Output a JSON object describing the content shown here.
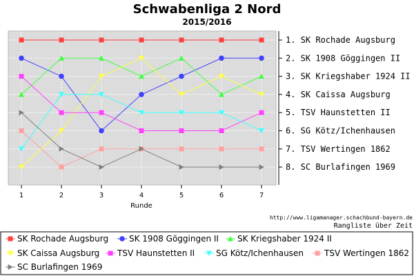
{
  "chart_data": {
    "type": "line",
    "title": "Schwabenliga 2 Nord",
    "subtitle": "2015/2016",
    "xlabel": "Runde",
    "ylabel": "",
    "x": [
      1,
      2,
      3,
      4,
      5,
      6,
      7
    ],
    "ylim": [
      0.5,
      8.5
    ],
    "y_inverted": true,
    "grid": true,
    "right_labels": [
      "1. SK Rochade Augsburg",
      "2. SK 1908 Göggingen II",
      "3. SK Kriegshaber 1924 II",
      "4. SK Caissa Augsburg",
      "5. TSV Haunstetten II",
      "6. SG Kötz/Ichenhausen",
      "7. TSV Wertingen 1862",
      "8. SC Burlafingen 1969"
    ],
    "source_url": "http://www.ligamanager.schachbund-bayern.de",
    "footer": "Rangliste über Zeit",
    "legend_position": "bottom",
    "series": [
      {
        "name": "SK Rochade Augsburg",
        "color": "#ff4040",
        "marker": "square",
        "values": [
          1,
          1,
          1,
          1,
          1,
          1,
          1
        ]
      },
      {
        "name": "SK 1908 Göggingen II",
        "color": "#4040ff",
        "marker": "circle",
        "values": [
          2,
          3,
          6,
          4,
          3,
          2,
          2
        ]
      },
      {
        "name": "SK Kriegshaber 1924 II",
        "color": "#40ff40",
        "marker": "triangle-up",
        "values": [
          4,
          2,
          2,
          3,
          2,
          4,
          3
        ]
      },
      {
        "name": "SK Caissa Augsburg",
        "color": "#ffff40",
        "marker": "triangle-down",
        "values": [
          8,
          6,
          3,
          2,
          4,
          3,
          4
        ]
      },
      {
        "name": "TSV Haunstetten II",
        "color": "#ff40ff",
        "marker": "square",
        "values": [
          3,
          5,
          5,
          6,
          6,
          6,
          5
        ]
      },
      {
        "name": "SG Kötz/Ichenhausen",
        "color": "#40ffff",
        "marker": "triangle-down",
        "values": [
          7,
          4,
          4,
          5,
          5,
          5,
          6
        ]
      },
      {
        "name": "TSV Wertingen 1862",
        "color": "#ffa0a0",
        "marker": "square",
        "values": [
          6,
          8,
          7,
          7,
          7,
          7,
          7
        ]
      },
      {
        "name": "SC Burlafingen 1969",
        "color": "#808080",
        "marker": "triangle-right",
        "values": [
          5,
          7,
          8,
          7,
          8,
          8,
          8
        ]
      }
    ]
  }
}
